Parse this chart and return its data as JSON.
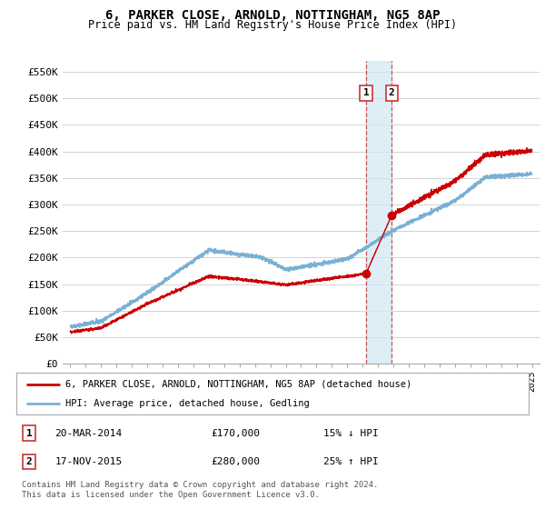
{
  "title": "6, PARKER CLOSE, ARNOLD, NOTTINGHAM, NG5 8AP",
  "subtitle": "Price paid vs. HM Land Registry's House Price Index (HPI)",
  "ylabel_ticks": [
    "£0",
    "£50K",
    "£100K",
    "£150K",
    "£200K",
    "£250K",
    "£300K",
    "£350K",
    "£400K",
    "£450K",
    "£500K",
    "£550K"
  ],
  "ytick_values": [
    0,
    50000,
    100000,
    150000,
    200000,
    250000,
    300000,
    350000,
    400000,
    450000,
    500000,
    550000
  ],
  "ylim": [
    0,
    570000
  ],
  "xlim": [
    1994.5,
    2025.5
  ],
  "transaction1": {
    "date": "20-MAR-2014",
    "price": 170000,
    "pct": "15%",
    "dir": "↓",
    "label": "1"
  },
  "transaction2": {
    "date": "17-NOV-2015",
    "price": 280000,
    "pct": "25%",
    "dir": "↑",
    "label": "2"
  },
  "tx1_x": 2014.22,
  "tx2_x": 2015.89,
  "tx1_y": 170000,
  "tx2_y": 280000,
  "legend_line1": "6, PARKER CLOSE, ARNOLD, NOTTINGHAM, NG5 8AP (detached house)",
  "legend_line2": "HPI: Average price, detached house, Gedling",
  "footer": "Contains HM Land Registry data © Crown copyright and database right 2024.\nThis data is licensed under the Open Government Licence v3.0.",
  "line_color_red": "#cc0000",
  "line_color_blue": "#7ab0d4",
  "shade_color": "#d0e8f5",
  "bg_color": "#ffffff",
  "grid_color": "#cccccc",
  "box_color": "#cc3333",
  "title_fontsize": 10,
  "subtitle_fontsize": 8.5,
  "tick_fontsize": 8,
  "legend_fontsize": 7.5,
  "footer_fontsize": 6.5
}
